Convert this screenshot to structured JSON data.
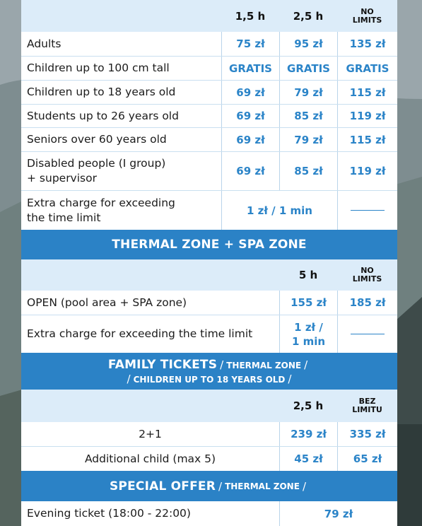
{
  "table1": {
    "headers": [
      "1,5 h",
      "2,5 h",
      "NO",
      "LIMITS"
    ],
    "rows": [
      {
        "label": "Adults",
        "v1": "75 zł",
        "v2": "95 zł",
        "v3": "135 zł"
      },
      {
        "label": "Children up to 100 cm tall",
        "v1": "GRATIS",
        "v2": "GRATIS",
        "v3": "GRATIS"
      },
      {
        "label": "Children up to 18 years old",
        "v1": "69 zł",
        "v2": "79 zł",
        "v3": "115 zł"
      },
      {
        "label": "Students up to 26 years old",
        "v1": "69 zł",
        "v2": "85 zł",
        "v3": "119 zł"
      },
      {
        "label": "Seniors over 60 years old",
        "v1": "69 zł",
        "v2": "79 zł",
        "v3": "115 zł"
      },
      {
        "label_line1": "Disabled people (I group)",
        "label_line2": "+ supervisor",
        "v1": "69 zł",
        "v2": "85 zł",
        "v3": "119 zł"
      },
      {
        "label_line1": "Extra charge for exceeding",
        "label_line2": "the time limit",
        "merged": "1 zł / 1 min"
      }
    ]
  },
  "thermal": {
    "title": "THERMAL ZONE + SPA ZONE",
    "headers": [
      "5 h",
      "NO",
      "LIMITS"
    ],
    "rows": [
      {
        "label": "OPEN (pool area + SPA zone)",
        "v1": "155 zł",
        "v2": "185 zł"
      },
      {
        "label": "Extra charge for exceeding the time limit",
        "v1_line1": "1 zł /",
        "v1_line2": "1 min"
      }
    ]
  },
  "family": {
    "title_big": "FAMILY TICKETS",
    "sep": "/",
    "title_small1": "THERMAL ZONE",
    "title_small2": "CHILDREN UP TO 18 YEARS OLD",
    "headers": [
      "2,5 h",
      "BEZ",
      "LIMITU"
    ],
    "rows": [
      {
        "label": "2+1",
        "v1": "239 zł",
        "v2": "335 zł"
      },
      {
        "label": "Additional child (max 5)",
        "v1": "45 zł",
        "v2": "65 zł"
      }
    ]
  },
  "special": {
    "title_big": "SPECIAL OFFER",
    "sep": "/",
    "title_small": "THERMAL ZONE",
    "rows": [
      {
        "label": "Evening ticket (18:00 - 22:00)",
        "v": "79 zł"
      }
    ]
  }
}
